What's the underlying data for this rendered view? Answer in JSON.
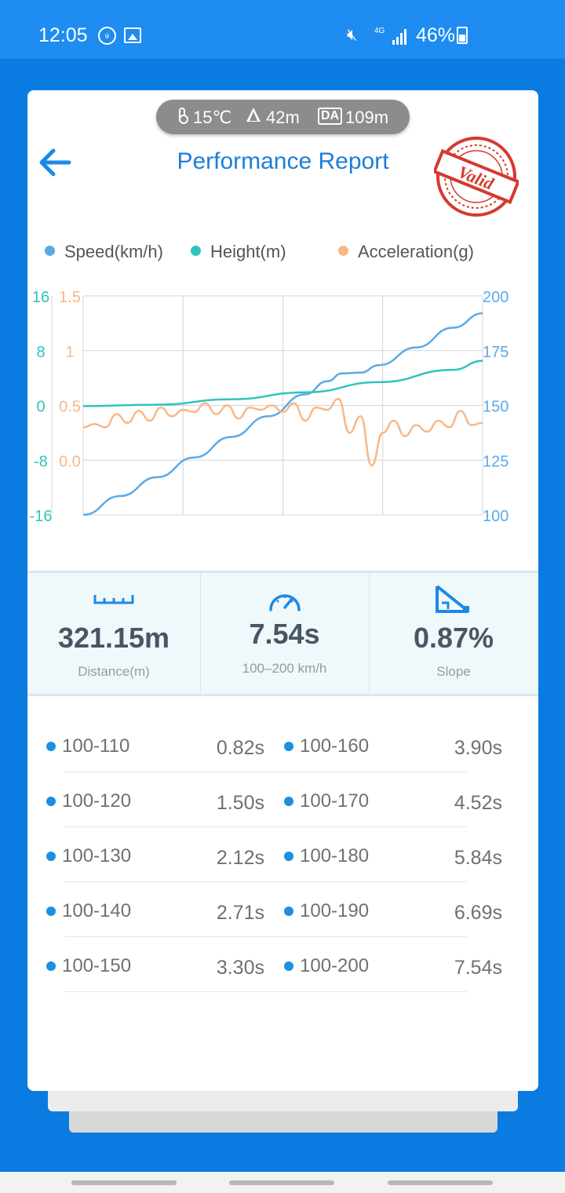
{
  "status_bar": {
    "time": "12:05",
    "network": "4G",
    "battery": "46%"
  },
  "conditions": {
    "temperature": "15℃",
    "altitude": "42m",
    "da_badge": "DA",
    "density_altitude": "109m"
  },
  "header": {
    "title": "Performance Report",
    "stamp_text": "Valid"
  },
  "colors": {
    "speed": "#5aaae8",
    "height": "#2ec4bd",
    "acceleration": "#f7b887",
    "accent": "#1c7fd8"
  },
  "chart_data": {
    "type": "line",
    "legend": [
      {
        "name": "Speed(km/h)",
        "color": "#5aaae8"
      },
      {
        "name": "Height(m)",
        "color": "#2ec4bd"
      },
      {
        "name": "Acceleration(g)",
        "color": "#f7b887"
      }
    ],
    "axes": {
      "height": {
        "ticks": [
          "16",
          "8",
          "0",
          "-8",
          "-16"
        ],
        "range": [
          -16,
          16
        ]
      },
      "acceleration": {
        "ticks": [
          "1.5",
          "1",
          "0.5",
          "0.0"
        ],
        "range": [
          -0.5,
          1.5
        ]
      },
      "speed": {
        "ticks": [
          "200",
          "175",
          "150",
          "125",
          "100"
        ],
        "range": [
          100,
          200
        ]
      }
    },
    "grid": true,
    "series": [
      {
        "name": "Speed(km/h)",
        "axis": "speed",
        "x": [
          0,
          1,
          2,
          3,
          4,
          5,
          6,
          6.6,
          7,
          7.5,
          8,
          9,
          10,
          10.8
        ],
        "values": [
          100,
          108.6,
          117.2,
          126.2,
          135.6,
          145,
          155,
          161,
          164.6,
          165,
          168.4,
          176.4,
          185.5,
          192
        ]
      },
      {
        "name": "Height(m)",
        "axis": "height",
        "x": [
          0,
          2,
          4,
          6,
          8,
          10,
          10.8
        ],
        "values": [
          -0.1,
          0.1,
          0.9,
          1.9,
          3.4,
          5.2,
          6.5
        ]
      },
      {
        "name": "Acceleration(g)",
        "axis": "acceleration",
        "x": [
          0,
          0.3,
          0.6,
          0.9,
          1.2,
          1.5,
          1.8,
          2.1,
          2.4,
          2.7,
          3.0,
          3.3,
          3.6,
          3.9,
          4.2,
          4.5,
          4.8,
          5.1,
          5.4,
          5.7,
          6.0,
          6.3,
          6.6,
          6.9,
          7.2,
          7.5,
          7.8,
          8.1,
          8.4,
          8.7,
          9.0,
          9.3,
          9.6,
          9.9,
          10.2,
          10.5,
          10.8
        ],
        "values": [
          0.3,
          0.33,
          0.3,
          0.42,
          0.34,
          0.45,
          0.36,
          0.48,
          0.4,
          0.46,
          0.44,
          0.52,
          0.42,
          0.5,
          0.38,
          0.48,
          0.46,
          0.5,
          0.44,
          0.52,
          0.36,
          0.48,
          0.46,
          0.56,
          0.25,
          0.4,
          -0.05,
          0.25,
          0.36,
          0.22,
          0.32,
          0.26,
          0.36,
          0.3,
          0.45,
          0.32,
          0.34
        ]
      }
    ]
  },
  "stats": [
    {
      "value": "321.15m",
      "label": "Distance(m)",
      "icon": "ruler-icon"
    },
    {
      "value": "7.54s",
      "label": "100–200 km/h",
      "icon": "speedometer-icon"
    },
    {
      "value": "0.87%",
      "label": "Slope",
      "icon": "slope-icon"
    }
  ],
  "splits": [
    {
      "left_label": "100-110",
      "left_time": "0.82s",
      "right_label": "100-160",
      "right_time": "3.90s"
    },
    {
      "left_label": "100-120",
      "left_time": "1.50s",
      "right_label": "100-170",
      "right_time": "4.52s"
    },
    {
      "left_label": "100-130",
      "left_time": "2.12s",
      "right_label": "100-180",
      "right_time": "5.84s"
    },
    {
      "left_label": "100-140",
      "left_time": "2.71s",
      "right_label": "100-190",
      "right_time": "6.69s"
    },
    {
      "left_label": "100-150",
      "left_time": "3.30s",
      "right_label": "100-200",
      "right_time": "7.54s"
    }
  ]
}
